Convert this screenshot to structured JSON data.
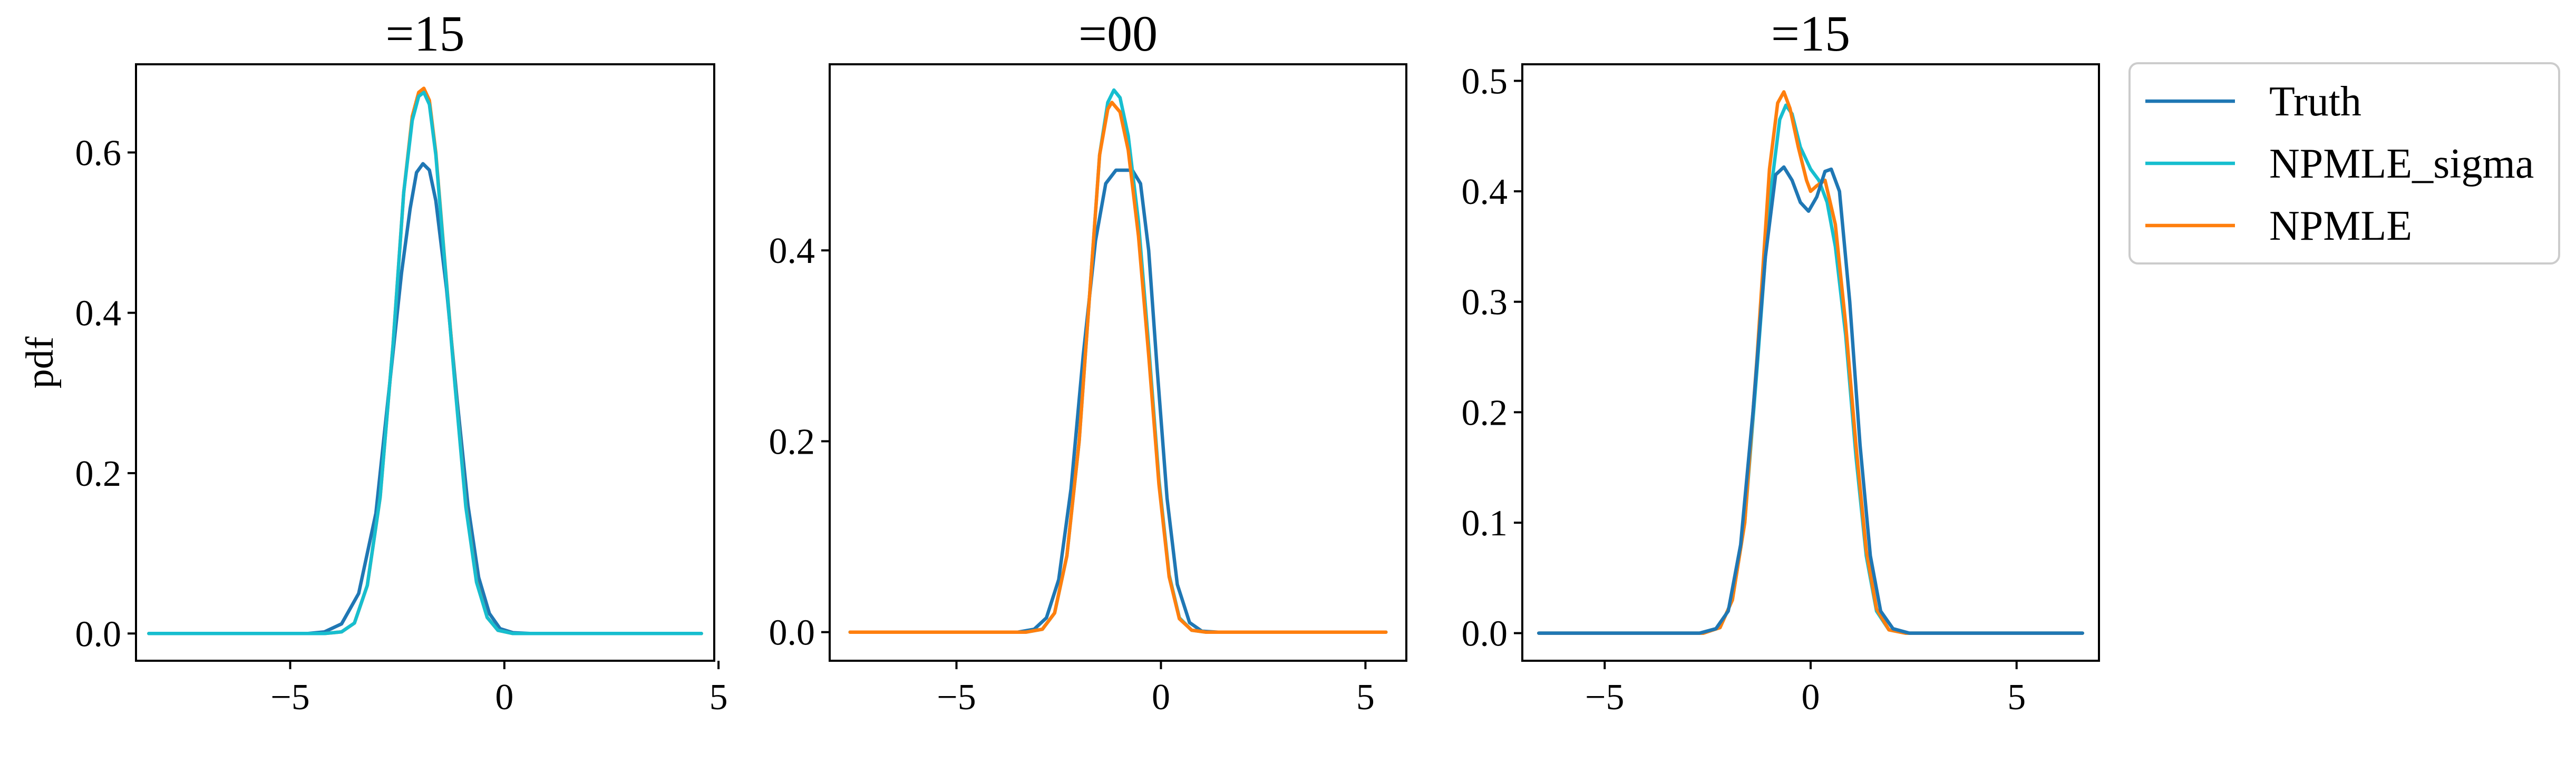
{
  "chart_data": [
    {
      "type": "line",
      "title": "=15",
      "xlabel": "",
      "ylabel": "pdf",
      "xlim": [
        -8.6,
        4.9
      ],
      "ylim": [
        -0.034,
        0.71
      ],
      "xticks": [
        -5,
        0,
        5
      ],
      "xtick_labels": [
        "−5",
        "0",
        "5"
      ],
      "yticks": [
        0.0,
        0.2,
        0.4,
        0.6
      ],
      "ytick_labels": [
        "0.0",
        "0.2",
        "0.4",
        "0.6"
      ],
      "x_range": [
        -8.3,
        4.6
      ],
      "series": [
        {
          "name": "Truth",
          "color": "#1f77b4",
          "points": [
            [
              -8.3,
              0
            ],
            [
              -4.6,
              0
            ],
            [
              -4.2,
              0.002
            ],
            [
              -3.8,
              0.012
            ],
            [
              -3.4,
              0.05
            ],
            [
              -3.0,
              0.15
            ],
            [
              -2.7,
              0.3
            ],
            [
              -2.4,
              0.45
            ],
            [
              -2.2,
              0.53
            ],
            [
              -2.05,
              0.575
            ],
            [
              -1.9,
              0.586
            ],
            [
              -1.75,
              0.578
            ],
            [
              -1.6,
              0.54
            ],
            [
              -1.35,
              0.43
            ],
            [
              -1.1,
              0.29
            ],
            [
              -0.85,
              0.16
            ],
            [
              -0.6,
              0.07
            ],
            [
              -0.35,
              0.025
            ],
            [
              -0.1,
              0.006
            ],
            [
              0.2,
              0.001
            ],
            [
              0.6,
              0
            ],
            [
              4.6,
              0
            ]
          ]
        },
        {
          "name": "NPMLE",
          "color": "#ff7f0e",
          "points": [
            [
              -8.3,
              0
            ],
            [
              -4.2,
              0
            ],
            [
              -3.8,
              0.002
            ],
            [
              -3.5,
              0.013
            ],
            [
              -3.2,
              0.06
            ],
            [
              -2.9,
              0.17
            ],
            [
              -2.6,
              0.36
            ],
            [
              -2.35,
              0.55
            ],
            [
              -2.15,
              0.645
            ],
            [
              -2.0,
              0.675
            ],
            [
              -1.88,
              0.68
            ],
            [
              -1.75,
              0.665
            ],
            [
              -1.6,
              0.6
            ],
            [
              -1.4,
              0.47
            ],
            [
              -1.15,
              0.31
            ],
            [
              -0.9,
              0.16
            ],
            [
              -0.65,
              0.065
            ],
            [
              -0.4,
              0.02
            ],
            [
              -0.15,
              0.004
            ],
            [
              0.2,
              0
            ],
            [
              4.6,
              0
            ]
          ]
        },
        {
          "name": "NPMLE_sigma",
          "color": "#17becf",
          "points": [
            [
              -8.3,
              0
            ],
            [
              -4.2,
              0
            ],
            [
              -3.8,
              0.002
            ],
            [
              -3.5,
              0.013
            ],
            [
              -3.2,
              0.06
            ],
            [
              -2.9,
              0.17
            ],
            [
              -2.6,
              0.36
            ],
            [
              -2.35,
              0.55
            ],
            [
              -2.15,
              0.64
            ],
            [
              -2.0,
              0.67
            ],
            [
              -1.88,
              0.675
            ],
            [
              -1.75,
              0.66
            ],
            [
              -1.6,
              0.597
            ],
            [
              -1.4,
              0.468
            ],
            [
              -1.15,
              0.308
            ],
            [
              -0.9,
              0.158
            ],
            [
              -0.65,
              0.064
            ],
            [
              -0.4,
              0.02
            ],
            [
              -0.15,
              0.004
            ],
            [
              0.2,
              0
            ],
            [
              4.6,
              0
            ]
          ]
        }
      ]
    },
    {
      "type": "line",
      "title": "=00",
      "xlabel": "",
      "ylabel": "",
      "xlim": [
        -8.1,
        6.0
      ],
      "ylim": [
        -0.03,
        0.595
      ],
      "xticks": [
        -5,
        0,
        5
      ],
      "xtick_labels": [
        "−5",
        "0",
        "5"
      ],
      "yticks": [
        0.0,
        0.2,
        0.4
      ],
      "ytick_labels": [
        "0.0",
        "0.2",
        "0.4"
      ],
      "x_range": [
        -7.6,
        5.5
      ],
      "series": [
        {
          "name": "Truth",
          "color": "#1f77b4",
          "points": [
            [
              -7.6,
              0
            ],
            [
              -3.5,
              0
            ],
            [
              -3.1,
              0.003
            ],
            [
              -2.8,
              0.015
            ],
            [
              -2.5,
              0.055
            ],
            [
              -2.2,
              0.15
            ],
            [
              -1.9,
              0.29
            ],
            [
              -1.6,
              0.41
            ],
            [
              -1.35,
              0.47
            ],
            [
              -1.1,
              0.484
            ],
            [
              -0.7,
              0.484
            ],
            [
              -0.5,
              0.47
            ],
            [
              -0.3,
              0.4
            ],
            [
              -0.1,
              0.28
            ],
            [
              0.15,
              0.14
            ],
            [
              0.4,
              0.05
            ],
            [
              0.7,
              0.01
            ],
            [
              1.0,
              0.001
            ],
            [
              1.4,
              0
            ],
            [
              5.5,
              0
            ]
          ]
        },
        {
          "name": "NPMLE_sigma",
          "color": "#17becf",
          "points": [
            [
              -7.6,
              0
            ],
            [
              -3.3,
              0
            ],
            [
              -2.9,
              0.003
            ],
            [
              -2.6,
              0.02
            ],
            [
              -2.3,
              0.08
            ],
            [
              -2.0,
              0.2
            ],
            [
              -1.7,
              0.38
            ],
            [
              -1.5,
              0.5
            ],
            [
              -1.3,
              0.555
            ],
            [
              -1.15,
              0.568
            ],
            [
              -1.0,
              0.56
            ],
            [
              -0.8,
              0.52
            ],
            [
              -0.55,
              0.43
            ],
            [
              -0.3,
              0.3
            ],
            [
              -0.05,
              0.16
            ],
            [
              0.2,
              0.06
            ],
            [
              0.45,
              0.015
            ],
            [
              0.75,
              0.002
            ],
            [
              1.1,
              0
            ],
            [
              5.5,
              0
            ]
          ]
        },
        {
          "name": "NPMLE",
          "color": "#ff7f0e",
          "points": [
            [
              -7.6,
              0
            ],
            [
              -3.3,
              0
            ],
            [
              -2.9,
              0.003
            ],
            [
              -2.6,
              0.02
            ],
            [
              -2.3,
              0.08
            ],
            [
              -2.0,
              0.2
            ],
            [
              -1.7,
              0.38
            ],
            [
              -1.5,
              0.5
            ],
            [
              -1.3,
              0.548
            ],
            [
              -1.2,
              0.555
            ],
            [
              -1.0,
              0.545
            ],
            [
              -0.8,
              0.505
            ],
            [
              -0.55,
              0.415
            ],
            [
              -0.3,
              0.29
            ],
            [
              -0.05,
              0.155
            ],
            [
              0.2,
              0.058
            ],
            [
              0.45,
              0.014
            ],
            [
              0.75,
              0.002
            ],
            [
              1.1,
              0
            ],
            [
              5.5,
              0
            ]
          ]
        }
      ]
    },
    {
      "type": "line",
      "title": "=15",
      "xlabel": "",
      "ylabel": "",
      "xlim": [
        -7.0,
        7.0
      ],
      "ylim": [
        -0.025,
        0.515
      ],
      "xticks": [
        -5,
        0,
        5
      ],
      "xtick_labels": [
        "−5",
        "0",
        "5"
      ],
      "yticks": [
        0.0,
        0.1,
        0.2,
        0.3,
        0.4,
        0.5
      ],
      "ytick_labels": [
        "0.0",
        "0.1",
        "0.2",
        "0.3",
        "0.4",
        "0.5"
      ],
      "x_range": [
        -6.6,
        6.6
      ],
      "series": [
        {
          "name": "NPMLE_sigma",
          "color": "#17becf",
          "points": [
            [
              -6.6,
              0
            ],
            [
              -2.6,
              0
            ],
            [
              -2.2,
              0.005
            ],
            [
              -1.9,
              0.03
            ],
            [
              -1.6,
              0.1
            ],
            [
              -1.3,
              0.24
            ],
            [
              -1.0,
              0.39
            ],
            [
              -0.75,
              0.465
            ],
            [
              -0.6,
              0.478
            ],
            [
              -0.45,
              0.47
            ],
            [
              -0.25,
              0.44
            ],
            [
              0.0,
              0.42
            ],
            [
              0.2,
              0.41
            ],
            [
              0.4,
              0.39
            ],
            [
              0.6,
              0.35
            ],
            [
              0.85,
              0.27
            ],
            [
              1.1,
              0.16
            ],
            [
              1.35,
              0.07
            ],
            [
              1.6,
              0.02
            ],
            [
              1.9,
              0.003
            ],
            [
              2.3,
              0
            ],
            [
              6.6,
              0
            ]
          ]
        },
        {
          "name": "NPMLE",
          "color": "#ff7f0e",
          "points": [
            [
              -6.6,
              0
            ],
            [
              -2.6,
              0
            ],
            [
              -2.2,
              0.005
            ],
            [
              -1.9,
              0.03
            ],
            [
              -1.6,
              0.1
            ],
            [
              -1.3,
              0.25
            ],
            [
              -1.0,
              0.42
            ],
            [
              -0.8,
              0.48
            ],
            [
              -0.65,
              0.49
            ],
            [
              -0.5,
              0.475
            ],
            [
              -0.3,
              0.44
            ],
            [
              -0.1,
              0.41
            ],
            [
              0.0,
              0.4
            ],
            [
              0.15,
              0.405
            ],
            [
              0.35,
              0.41
            ],
            [
              0.6,
              0.37
            ],
            [
              0.85,
              0.28
            ],
            [
              1.1,
              0.17
            ],
            [
              1.35,
              0.075
            ],
            [
              1.6,
              0.022
            ],
            [
              1.9,
              0.003
            ],
            [
              2.3,
              0
            ],
            [
              6.6,
              0
            ]
          ]
        },
        {
          "name": "Truth",
          "color": "#1f77b4",
          "points": [
            [
              -6.6,
              0
            ],
            [
              -2.7,
              0
            ],
            [
              -2.3,
              0.004
            ],
            [
              -2.0,
              0.02
            ],
            [
              -1.7,
              0.08
            ],
            [
              -1.4,
              0.2
            ],
            [
              -1.1,
              0.34
            ],
            [
              -0.85,
              0.415
            ],
            [
              -0.65,
              0.422
            ],
            [
              -0.45,
              0.41
            ],
            [
              -0.25,
              0.39
            ],
            [
              -0.05,
              0.382
            ],
            [
              0.15,
              0.395
            ],
            [
              0.35,
              0.418
            ],
            [
              0.5,
              0.42
            ],
            [
              0.7,
              0.4
            ],
            [
              0.95,
              0.3
            ],
            [
              1.2,
              0.17
            ],
            [
              1.45,
              0.07
            ],
            [
              1.7,
              0.02
            ],
            [
              2.0,
              0.004
            ],
            [
              2.4,
              0
            ],
            [
              6.6,
              0
            ]
          ]
        }
      ]
    }
  ],
  "legend": {
    "placement": "outside-right",
    "items": [
      {
        "label": "Truth",
        "color": "#1f77b4"
      },
      {
        "label": "NPMLE_sigma",
        "color": "#17becf"
      },
      {
        "label": "NPMLE",
        "color": "#ff7f0e"
      }
    ]
  }
}
